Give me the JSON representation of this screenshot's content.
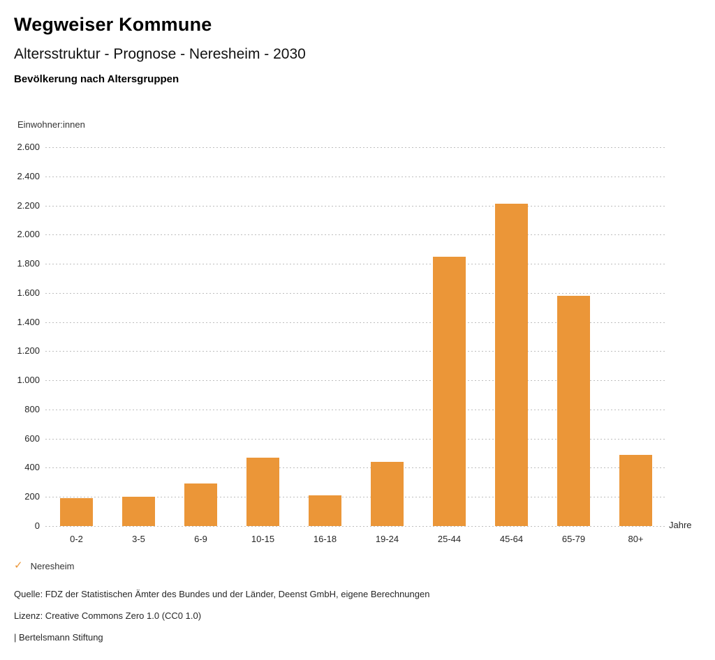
{
  "header": {
    "title": "Wegweiser Kommune",
    "subtitle": "Altersstruktur - Prognose - Neresheim - 2030",
    "section": "Bevölkerung nach Altersgruppen"
  },
  "chart_data": {
    "type": "bar",
    "title": "Bevölkerung nach Altersgruppen",
    "unit_label": "Einwohner:innen",
    "xlabel": "Jahre",
    "ylabel": "Einwohner:innen",
    "categories": [
      "0-2",
      "3-5",
      "6-9",
      "10-15",
      "16-18",
      "19-24",
      "25-44",
      "45-64",
      "65-79",
      "80+"
    ],
    "series": [
      {
        "name": "Neresheim",
        "values": [
          190,
          200,
          290,
          470,
          210,
          440,
          1850,
          2210,
          1580,
          490
        ]
      }
    ],
    "ylim": [
      0,
      2600
    ],
    "ytick_step": 200,
    "ytick_labels": [
      "0",
      "200",
      "400",
      "600",
      "800",
      "1.000",
      "1.200",
      "1.400",
      "1.600",
      "1.800",
      "2.000",
      "2.200",
      "2.400",
      "2.600"
    ],
    "grid": "dotted horizontal gridlines",
    "legend_position": "bottom-left",
    "bar_color": "#EB9638"
  },
  "legend": {
    "check_icon": "✓",
    "label": "Neresheim"
  },
  "footer": {
    "source": "Quelle: FDZ der Statistischen Ämter des Bundes und der Länder, Deenst GmbH, eigene Berechnungen",
    "license": "Lizenz: Creative Commons Zero 1.0 (CC0 1.0)",
    "attribution": "| Bertelsmann Stiftung"
  },
  "colors": {
    "bar": "#EB9638",
    "grid": "#BDBDBD",
    "text": "#262626"
  }
}
